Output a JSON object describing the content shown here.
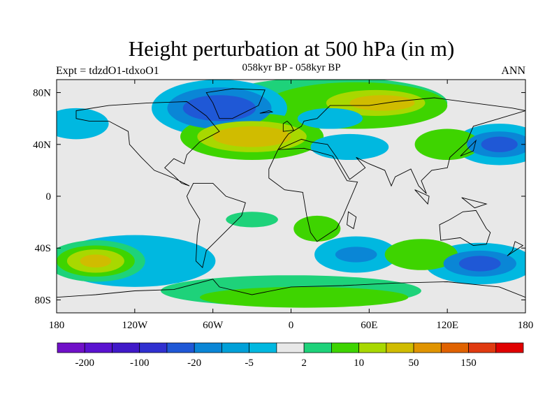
{
  "header": {
    "title": "Height perturbation at 500 hPa (in m)",
    "subtitle": "058kyr BP - 058kyr BP",
    "left_label": "Expt = tdzdO1-tdxoO1",
    "right_label": "ANN"
  },
  "map": {
    "lon_range": [
      -180,
      180
    ],
    "lat_range": [
      -90,
      90
    ],
    "lat_ticks": [
      {
        "lat": 80,
        "label": "80N"
      },
      {
        "lat": 40,
        "label": "40N"
      },
      {
        "lat": 0,
        "label": "0"
      },
      {
        "lat": -40,
        "label": "40S"
      },
      {
        "lat": -80,
        "label": "80S"
      }
    ],
    "lon_ticks": [
      {
        "lon": -180,
        "label": "180"
      },
      {
        "lon": -120,
        "label": "120W"
      },
      {
        "lon": -60,
        "label": "60W"
      },
      {
        "lon": 0,
        "label": "0"
      },
      {
        "lon": 60,
        "label": "60E"
      },
      {
        "lon": 120,
        "label": "120E"
      },
      {
        "lon": 180,
        "label": "180"
      }
    ],
    "background_color": "#e8e8e8",
    "anomalies": [
      {
        "lon": -55,
        "lat": 68,
        "rx": 28,
        "ry": 10,
        "color": "#1f58d6"
      },
      {
        "lon": -55,
        "lat": 68,
        "rx": 40,
        "ry": 16,
        "color": "#0a86d6"
      },
      {
        "lon": -55,
        "lat": 68,
        "rx": 52,
        "ry": 22,
        "color": "#00b8e0"
      },
      {
        "lon": -30,
        "lat": 46,
        "rx": 30,
        "ry": 8,
        "color": "#d0bc00"
      },
      {
        "lon": -30,
        "lat": 46,
        "rx": 42,
        "ry": 12,
        "color": "#a8d800"
      },
      {
        "lon": -30,
        "lat": 46,
        "rx": 55,
        "ry": 18,
        "color": "#3ed400"
      },
      {
        "lon": 70,
        "lat": 72,
        "rx": 25,
        "ry": 6,
        "color": "#d0bc00"
      },
      {
        "lon": 65,
        "lat": 72,
        "rx": 38,
        "ry": 10,
        "color": "#a8d800"
      },
      {
        "lon": 50,
        "lat": 70,
        "rx": 70,
        "ry": 18,
        "color": "#3ed400"
      },
      {
        "lon": 30,
        "lat": 72,
        "rx": 90,
        "ry": 20,
        "color": "#1ed27a"
      },
      {
        "lon": 160,
        "lat": 40,
        "rx": 14,
        "ry": 6,
        "color": "#1f58d6"
      },
      {
        "lon": 160,
        "lat": 40,
        "rx": 25,
        "ry": 10,
        "color": "#0a86d6"
      },
      {
        "lon": 160,
        "lat": 40,
        "rx": 35,
        "ry": 16,
        "color": "#00b8e0"
      },
      {
        "lon": 45,
        "lat": 38,
        "rx": 30,
        "ry": 10,
        "color": "#00b8e0"
      },
      {
        "lon": 120,
        "lat": 40,
        "rx": 25,
        "ry": 12,
        "color": "#3ed400"
      },
      {
        "lon": -165,
        "lat": 56,
        "rx": 25,
        "ry": 12,
        "color": "#00b8e0"
      },
      {
        "lon": -150,
        "lat": -50,
        "rx": 12,
        "ry": 5,
        "color": "#d0bc00"
      },
      {
        "lon": -150,
        "lat": -50,
        "rx": 22,
        "ry": 9,
        "color": "#a8d800"
      },
      {
        "lon": -150,
        "lat": -50,
        "rx": 30,
        "ry": 12,
        "color": "#3ed400"
      },
      {
        "lon": -150,
        "lat": -50,
        "rx": 38,
        "ry": 16,
        "color": "#1ed27a"
      },
      {
        "lon": -120,
        "lat": -50,
        "rx": 62,
        "ry": 20,
        "color": "#00b8e0"
      },
      {
        "lon": 50,
        "lat": -45,
        "rx": 16,
        "ry": 6,
        "color": "#0a86d6"
      },
      {
        "lon": 50,
        "lat": -45,
        "rx": 32,
        "ry": 14,
        "color": "#00b8e0"
      },
      {
        "lon": 145,
        "lat": -52,
        "rx": 16,
        "ry": 6,
        "color": "#1f58d6"
      },
      {
        "lon": 145,
        "lat": -52,
        "rx": 28,
        "ry": 10,
        "color": "#0a86d6"
      },
      {
        "lon": 145,
        "lat": -52,
        "rx": 42,
        "ry": 16,
        "color": "#00b8e0"
      },
      {
        "lon": 100,
        "lat": -45,
        "rx": 28,
        "ry": 12,
        "color": "#3ed400"
      },
      {
        "lon": 10,
        "lat": -78,
        "rx": 80,
        "ry": 8,
        "color": "#3ed400"
      },
      {
        "lon": 0,
        "lat": -73,
        "rx": 100,
        "ry": 12,
        "color": "#1ed27a"
      },
      {
        "lon": 20,
        "lat": -25,
        "rx": 18,
        "ry": 10,
        "color": "#3ed400"
      },
      {
        "lon": -30,
        "lat": -18,
        "rx": 20,
        "ry": 6,
        "color": "#1ed27a"
      },
      {
        "lon": 30,
        "lat": 60,
        "rx": 25,
        "ry": 8,
        "color": "#00b8e0"
      }
    ],
    "continents": [
      [
        [
          -165,
          66
        ],
        [
          -140,
          70
        ],
        [
          -110,
          72
        ],
        [
          -80,
          73
        ],
        [
          -65,
          62
        ],
        [
          -55,
          50
        ],
        [
          -70,
          42
        ],
        [
          -80,
          32
        ],
        [
          -82,
          25
        ],
        [
          -90,
          29
        ],
        [
          -97,
          22
        ],
        [
          -90,
          16
        ],
        [
          -84,
          10
        ],
        [
          -78,
          8
        ],
        [
          -90,
          14
        ],
        [
          -105,
          20
        ],
        [
          -115,
          30
        ],
        [
          -124,
          40
        ],
        [
          -125,
          50
        ],
        [
          -140,
          58
        ],
        [
          -155,
          58
        ],
        [
          -165,
          60
        ]
      ],
      [
        [
          -75,
          10
        ],
        [
          -60,
          10
        ],
        [
          -50,
          0
        ],
        [
          -35,
          -5
        ],
        [
          -38,
          -15
        ],
        [
          -48,
          -25
        ],
        [
          -58,
          -35
        ],
        [
          -65,
          -42
        ],
        [
          -68,
          -55
        ],
        [
          -73,
          -50
        ],
        [
          -72,
          -30
        ],
        [
          -70,
          -18
        ],
        [
          -78,
          -5
        ],
        [
          -80,
          0
        ]
      ],
      [
        [
          -55,
          60
        ],
        [
          -45,
          60
        ],
        [
          -25,
          70
        ],
        [
          -20,
          82
        ],
        [
          -45,
          83
        ],
        [
          -65,
          80
        ],
        [
          -60,
          72
        ]
      ],
      [
        [
          -10,
          36
        ],
        [
          10,
          37
        ],
        [
          32,
          31
        ],
        [
          43,
          12
        ],
        [
          51,
          11
        ],
        [
          40,
          -15
        ],
        [
          35,
          -25
        ],
        [
          20,
          -35
        ],
        [
          15,
          -28
        ],
        [
          12,
          -15
        ],
        [
          9,
          3
        ],
        [
          -5,
          5
        ],
        [
          -17,
          14
        ],
        [
          -17,
          21
        ]
      ],
      [
        [
          -10,
          36
        ],
        [
          -5,
          44
        ],
        [
          -2,
          48
        ],
        [
          8,
          54
        ],
        [
          10,
          58
        ],
        [
          20,
          60
        ],
        [
          30,
          70
        ],
        [
          60,
          70
        ],
        [
          80,
          73
        ],
        [
          110,
          76
        ],
        [
          140,
          72
        ],
        [
          170,
          68
        ],
        [
          180,
          66
        ],
        [
          160,
          60
        ],
        [
          140,
          54
        ],
        [
          135,
          42
        ],
        [
          122,
          30
        ],
        [
          120,
          22
        ],
        [
          108,
          20
        ],
        [
          100,
          12
        ],
        [
          104,
          2
        ],
        [
          98,
          8
        ],
        [
          92,
          21
        ],
        [
          80,
          15
        ],
        [
          77,
          8
        ],
        [
          72,
          20
        ],
        [
          60,
          25
        ],
        [
          50,
          30
        ],
        [
          57,
          22
        ],
        [
          45,
          13
        ],
        [
          35,
          30
        ],
        [
          28,
          40
        ],
        [
          15,
          42
        ],
        [
          8,
          44
        ]
      ],
      [
        [
          114,
          -22
        ],
        [
          122,
          -18
        ],
        [
          132,
          -12
        ],
        [
          142,
          -11
        ],
        [
          150,
          -25
        ],
        [
          153,
          -28
        ],
        [
          150,
          -37
        ],
        [
          140,
          -38
        ],
        [
          130,
          -32
        ],
        [
          115,
          -34
        ]
      ],
      [
        [
          -180,
          -78
        ],
        [
          -150,
          -76
        ],
        [
          -120,
          -73
        ],
        [
          -90,
          -72
        ],
        [
          -60,
          -64
        ],
        [
          -55,
          -70
        ],
        [
          -30,
          -76
        ],
        [
          0,
          -70
        ],
        [
          40,
          -69
        ],
        [
          80,
          -67
        ],
        [
          120,
          -66
        ],
        [
          160,
          -70
        ],
        [
          180,
          -78
        ],
        [
          180,
          -90
        ],
        [
          -180,
          -90
        ]
      ],
      [
        [
          44,
          -12
        ],
        [
          50,
          -16
        ],
        [
          48,
          -25
        ],
        [
          43,
          -22
        ]
      ],
      [
        [
          -6,
          50
        ],
        [
          2,
          51
        ],
        [
          0,
          55
        ],
        [
          -3,
          58
        ],
        [
          -6,
          56
        ]
      ],
      [
        [
          130,
          31
        ],
        [
          140,
          35
        ],
        [
          142,
          43
        ],
        [
          136,
          37
        ]
      ],
      [
        [
          95,
          5
        ],
        [
          105,
          -6
        ],
        [
          106,
          0
        ]
      ],
      [
        [
          131,
          -1
        ],
        [
          150,
          -6
        ],
        [
          141,
          -9
        ]
      ],
      [
        [
          172,
          -35
        ],
        [
          178,
          -38
        ],
        [
          166,
          -46
        ],
        [
          170,
          -42
        ]
      ],
      [
        [
          -24,
          64
        ],
        [
          -14,
          65
        ],
        [
          -17,
          66
        ]
      ]
    ]
  },
  "colorbar": {
    "colors": [
      "#7010c8",
      "#5a12d0",
      "#4019c8",
      "#3030d0",
      "#1f58d6",
      "#0a86d6",
      "#00a0d8",
      "#00b8e0",
      "#e8e8e8",
      "#1ed27a",
      "#3ed400",
      "#a8d800",
      "#d0bc00",
      "#e09400",
      "#e06200",
      "#e03a10",
      "#e00000"
    ],
    "tick_labels": [
      {
        "index": 1,
        "label": "-200"
      },
      {
        "index": 3,
        "label": "-100"
      },
      {
        "index": 5,
        "label": "-20"
      },
      {
        "index": 7,
        "label": "-5"
      },
      {
        "index": 9,
        "label": "2"
      },
      {
        "index": 11,
        "label": "10"
      },
      {
        "index": 13,
        "label": "50"
      },
      {
        "index": 15,
        "label": "150"
      }
    ]
  }
}
